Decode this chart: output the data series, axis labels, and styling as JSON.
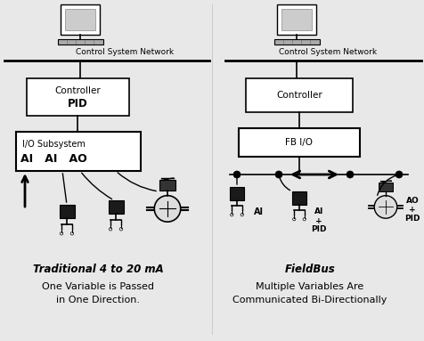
{
  "bg_color": "#ffffff",
  "left_title": "Traditional 4 to 20 mA",
  "left_sub1": "One Variable is Passed",
  "left_sub2": "in One Direction.",
  "right_title": "FieldBus",
  "right_sub1": "Multiple Variables Are",
  "right_sub2": "Communicated Bi-Directionally",
  "left_network_label": "Control System Network",
  "right_network_label": "Control System Network"
}
